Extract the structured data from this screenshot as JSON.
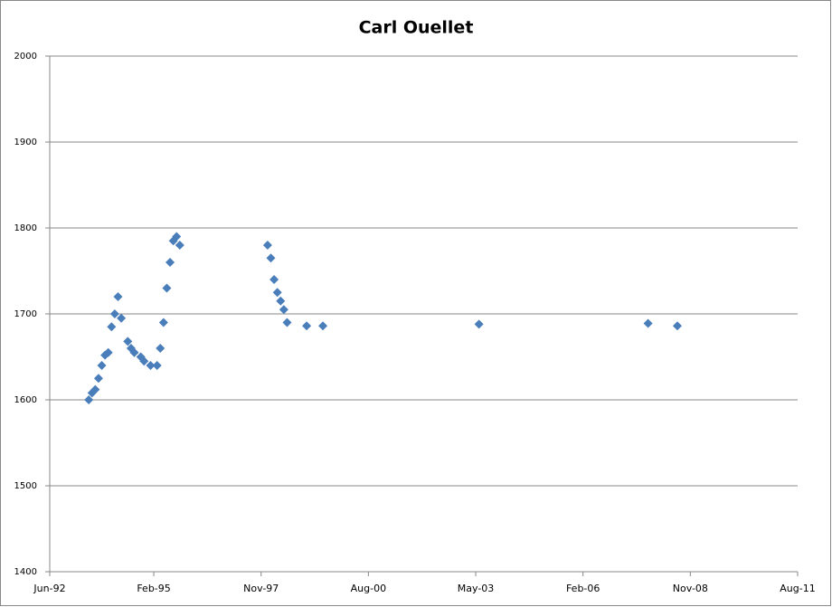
{
  "chart_data": {
    "type": "scatter",
    "title": "Carl Ouellet",
    "color": "#4a7ebb",
    "grid": true,
    "x": [
      "1993-06",
      "1993-07",
      "1993-08",
      "1993-09",
      "1993-10",
      "1993-11",
      "1993-12",
      "1994-01",
      "1994-02",
      "1994-03",
      "1994-04",
      "1994-06",
      "1994-07",
      "1994-08",
      "1994-10",
      "1994-11",
      "1995-01",
      "1995-03",
      "1995-04",
      "1995-05",
      "1995-06",
      "1995-07",
      "1995-08",
      "1995-09",
      "1995-10",
      "1998-01",
      "1998-02",
      "1998-03",
      "1998-04",
      "1998-05",
      "1998-06",
      "1998-07",
      "1999-01",
      "1999-06",
      "2003-06",
      "2007-10",
      "2008-07"
    ],
    "values": [
      1600,
      1608,
      1612,
      1625,
      1640,
      1652,
      1655,
      1685,
      1700,
      1720,
      1695,
      1668,
      1660,
      1655,
      1650,
      1645,
      1640,
      1640,
      1660,
      1690,
      1730,
      1760,
      1785,
      1790,
      1780,
      1780,
      1765,
      1740,
      1725,
      1715,
      1705,
      1690,
      1686,
      1686,
      1688,
      1689,
      1686
    ],
    "xlim": [
      "1992-06",
      "2011-08"
    ],
    "xticks": [
      {
        "value": "1992-06",
        "label": "Jun-92"
      },
      {
        "value": "1995-02",
        "label": "Feb-95"
      },
      {
        "value": "1997-11",
        "label": "Nov-97"
      },
      {
        "value": "2000-08",
        "label": "Aug-00"
      },
      {
        "value": "2003-05",
        "label": "May-03"
      },
      {
        "value": "2006-02",
        "label": "Feb-06"
      },
      {
        "value": "2008-11",
        "label": "Nov-08"
      },
      {
        "value": "2011-08",
        "label": "Aug-11"
      }
    ],
    "ylim": [
      1400,
      2000
    ],
    "yticks": [
      1400,
      1500,
      1600,
      1700,
      1800,
      1900,
      2000
    ]
  }
}
